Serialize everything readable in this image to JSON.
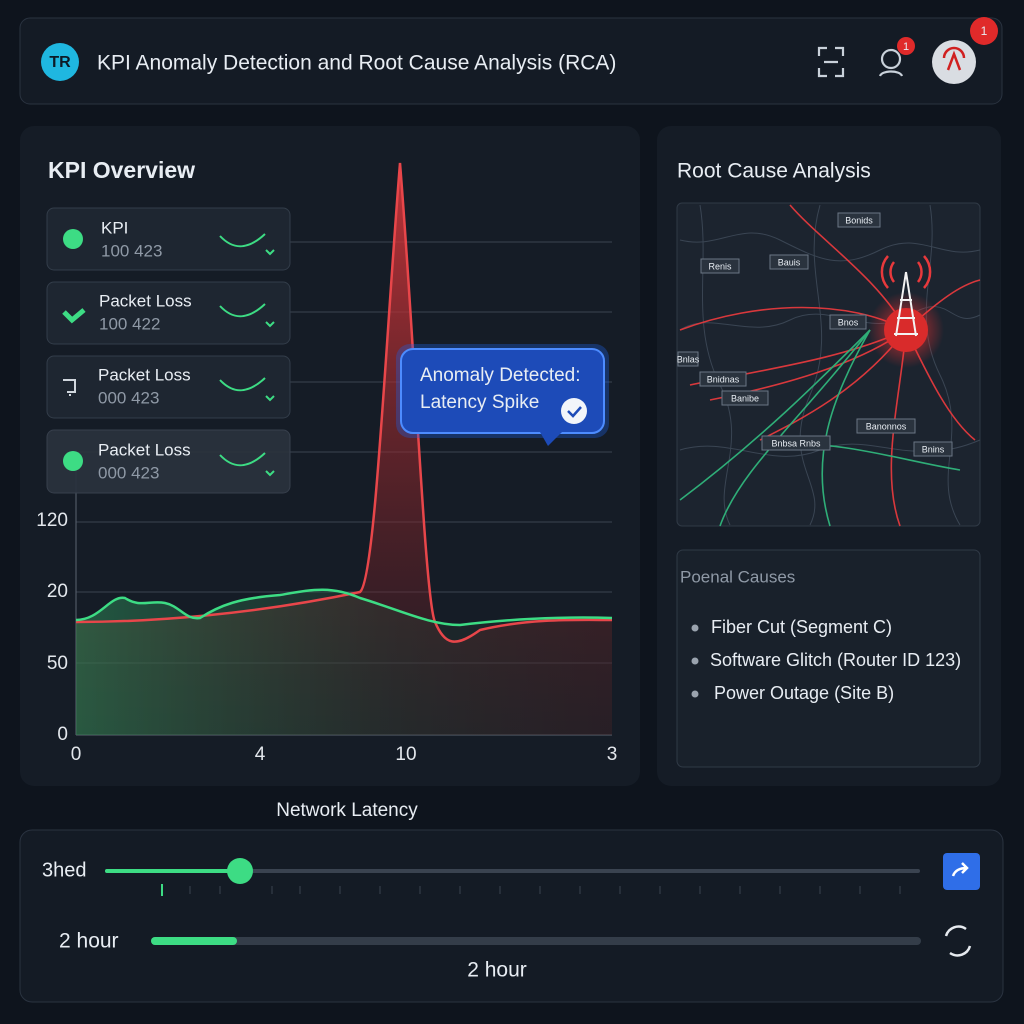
{
  "header": {
    "logo": "TR",
    "title": "KPI Anomaly Detection and Root Cause Analysis (RCA)",
    "badges": [
      "1",
      "1"
    ]
  },
  "kpi_overview": {
    "title": "KPI Overview",
    "cards": [
      {
        "label": "KPI",
        "value": "100 423"
      },
      {
        "label": "Packet Loss",
        "value": "100 422"
      },
      {
        "label": "Packet Loss",
        "value": "000 423"
      },
      {
        "label": "Packet Loss",
        "value": "000 423"
      }
    ],
    "y_labels": [
      "120",
      "20",
      "50",
      "0"
    ],
    "x_labels": [
      "0",
      "4",
      "10",
      "3"
    ],
    "callout": [
      "Anomaly Detected:",
      "Latency Spike"
    ],
    "caption": "Network Latency"
  },
  "root_cause": {
    "title": "Root Cause Analysis",
    "map_labels": [
      "Bonids",
      "Renis",
      "Bauis",
      "Bnos",
      "Bnlas",
      "Bnidnas",
      "Banibe",
      "Bnbsa Rnbs",
      "Banonnos",
      "Bnins"
    ],
    "causes_title": "Poenal Causes",
    "causes": [
      "Fiber Cut (Segment C)",
      "Software Glitch (Router ID 123)",
      "Power Outage (Site B)"
    ]
  },
  "controls": {
    "slider_label": "3hed",
    "range_label": "2 hour",
    "range_value": "2 hour"
  }
}
